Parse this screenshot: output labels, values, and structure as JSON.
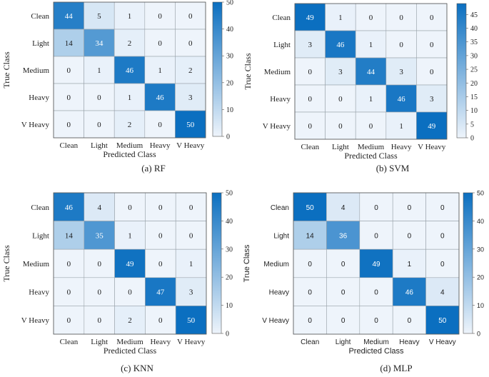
{
  "figure": {
    "colormap": {
      "low": "#eef4fb",
      "high": "#0b6fc0",
      "text_dark": "#1a1a1a",
      "text_light": "#ffffff"
    }
  },
  "chart_data": [
    {
      "type": "heatmap",
      "caption": "(a)  RF",
      "xlabel": "Predicted Class",
      "ylabel": "True Class",
      "x_categories": [
        "Clean",
        "Light",
        "Medium",
        "Heavy",
        "V Heavy"
      ],
      "y_categories": [
        "Clean",
        "Light",
        "Medium",
        "Heavy",
        "V Heavy"
      ],
      "values": [
        [
          44,
          5,
          1,
          0,
          0
        ],
        [
          14,
          34,
          2,
          0,
          0
        ],
        [
          0,
          1,
          46,
          1,
          2
        ],
        [
          0,
          0,
          1,
          46,
          3
        ],
        [
          0,
          0,
          2,
          0,
          50
        ]
      ],
      "colorbar": {
        "min": 0,
        "max": 50,
        "ticks": [
          "0",
          "10",
          "20",
          "30",
          "40",
          "50"
        ]
      }
    },
    {
      "type": "heatmap",
      "caption": "(b) SVM",
      "xlabel": "Predicted Class",
      "ylabel": "True Class",
      "x_categories": [
        "Clean",
        "Light",
        "Medium",
        "Heavy",
        "V Heavy"
      ],
      "y_categories": [
        "Clean",
        "Light",
        "Medium",
        "Heavy",
        "V Heavy"
      ],
      "values": [
        [
          49,
          1,
          0,
          0,
          0
        ],
        [
          3,
          46,
          1,
          0,
          0
        ],
        [
          0,
          3,
          44,
          3,
          0
        ],
        [
          0,
          0,
          1,
          46,
          3
        ],
        [
          0,
          0,
          0,
          1,
          49
        ]
      ],
      "colorbar": {
        "min": 0,
        "max": 49,
        "ticks": [
          "0",
          "5",
          "10",
          "15",
          "20",
          "25",
          "30",
          "35",
          "40",
          "45"
        ]
      }
    },
    {
      "type": "heatmap",
      "caption": "(c) KNN",
      "xlabel": "Predicted Class",
      "ylabel": "True Class",
      "x_categories": [
        "Clean",
        "Light",
        "Medium",
        "Heavy",
        "V Heavy"
      ],
      "y_categories": [
        "Clean",
        "Light",
        "Medium",
        "Heavy",
        "V Heavy"
      ],
      "values": [
        [
          46,
          4,
          0,
          0,
          0
        ],
        [
          14,
          35,
          1,
          0,
          0
        ],
        [
          0,
          0,
          49,
          0,
          1
        ],
        [
          0,
          0,
          0,
          47,
          3
        ],
        [
          0,
          0,
          2,
          0,
          50
        ]
      ],
      "colorbar": {
        "min": 0,
        "max": 50,
        "ticks": [
          "0",
          "10",
          "20",
          "30",
          "40",
          "50"
        ]
      }
    },
    {
      "type": "heatmap",
      "caption": "(d) MLP",
      "xlabel": "Predicted Class",
      "ylabel": "True Class",
      "x_categories": [
        "Clean",
        "Light",
        "Medium",
        "Heavy",
        "V Heavy"
      ],
      "y_categories": [
        "Clean",
        "Light",
        "Medium",
        "Heavy",
        "V Heavy"
      ],
      "values": [
        [
          50,
          4,
          0,
          0,
          0
        ],
        [
          14,
          36,
          0,
          0,
          0
        ],
        [
          0,
          0,
          49,
          1,
          0
        ],
        [
          0,
          0,
          0,
          46,
          4
        ],
        [
          0,
          0,
          0,
          0,
          50
        ]
      ],
      "colorbar": {
        "min": 0,
        "max": 50,
        "ticks": [
          "0",
          "10",
          "20",
          "30",
          "40",
          "50"
        ]
      }
    }
  ]
}
